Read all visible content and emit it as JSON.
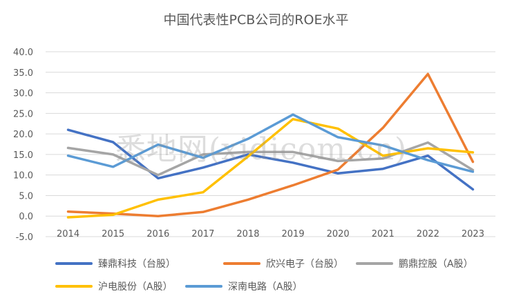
{
  "chart_data": {
    "type": "line",
    "title": "中国代表性PCB公司的ROE水平",
    "categories": [
      "2014",
      "2015",
      "2016",
      "2017",
      "2018",
      "2019",
      "2020",
      "2021",
      "2022",
      "2023"
    ],
    "y_tick_labels": [
      "-5.0",
      "0.0",
      "5.0",
      "10.0",
      "15.0",
      "20.0",
      "25.0",
      "30.0",
      "35.0",
      "40.0"
    ],
    "ylim": [
      -5,
      40
    ],
    "grid": "horizontal",
    "legend_position": "bottom",
    "series": [
      {
        "name": "臻鼎科技（台股）",
        "color": "#4472C4",
        "values": [
          21.0,
          18.0,
          9.2,
          11.8,
          15.0,
          13.0,
          10.4,
          11.5,
          14.7,
          6.5
        ]
      },
      {
        "name": "欣兴电子（台股）",
        "color": "#ED7D31",
        "values": [
          1.1,
          0.6,
          0.0,
          1.0,
          4.0,
          7.5,
          11.3,
          21.5,
          34.6,
          13.2
        ]
      },
      {
        "name": "鹏鼎控股（A股）",
        "color": "#A5A5A5",
        "values": [
          16.6,
          15.0,
          10.0,
          15.0,
          15.6,
          15.6,
          13.4,
          14.0,
          17.9,
          11.2
        ]
      },
      {
        "name": "沪电股份（A股）",
        "color": "#FFC000",
        "values": [
          -0.3,
          0.3,
          4.0,
          5.8,
          14.5,
          23.6,
          21.3,
          14.7,
          16.5,
          15.5
        ]
      },
      {
        "name": "深南电路（A股）",
        "color": "#5B9BD5",
        "values": [
          14.7,
          12.0,
          17.4,
          14.2,
          18.8,
          24.7,
          19.2,
          17.2,
          13.6,
          10.8
        ]
      }
    ]
  },
  "watermark": "悉地网(xidicom.cn)"
}
